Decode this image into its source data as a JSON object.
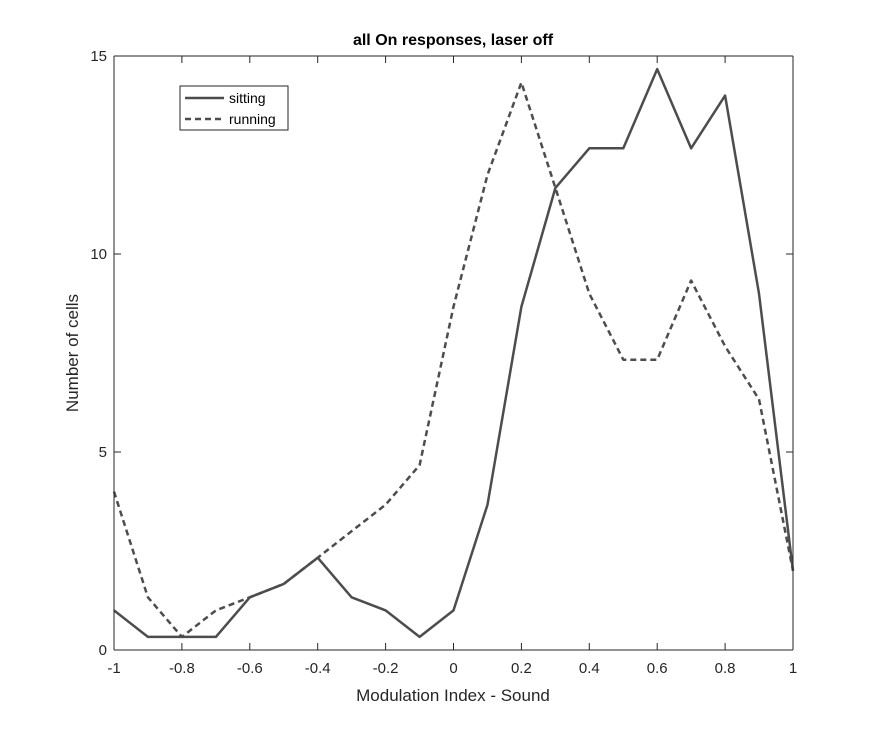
{
  "chart_data": {
    "type": "line",
    "title": "all On responses, laser off",
    "xlabel": "Modulation Index - Sound",
    "ylabel": "Number of cells",
    "xlim": [
      -1,
      1
    ],
    "ylim": [
      0,
      15
    ],
    "xticks": [
      -1,
      -0.8,
      -0.6,
      -0.4,
      -0.2,
      0,
      0.2,
      0.4,
      0.6,
      0.8,
      1
    ],
    "xtick_labels": [
      "-1",
      "-0.8",
      "-0.6",
      "-0.4",
      "-0.2",
      "0",
      "0.2",
      "0.4",
      "0.6",
      "0.8",
      "1"
    ],
    "yticks": [
      0,
      5,
      10,
      15
    ],
    "ytick_labels": [
      "0",
      "5",
      "10",
      "15"
    ],
    "grid": false,
    "legend_position": "top-left",
    "x": [
      -1,
      -0.9,
      -0.8,
      -0.7,
      -0.6,
      -0.5,
      -0.4,
      -0.3,
      -0.2,
      -0.1,
      0,
      0.1,
      0.2,
      0.3,
      0.4,
      0.5,
      0.6,
      0.7,
      0.8,
      0.9,
      1
    ],
    "series": [
      {
        "name": "sitting",
        "style": "solid",
        "color": "#4d4d4d",
        "values": [
          1,
          0.33,
          0.33,
          0.33,
          1.33,
          1.67,
          2.33,
          1.33,
          1,
          0.33,
          1,
          3.67,
          8.67,
          11.67,
          12.67,
          12.67,
          14.67,
          12.67,
          14,
          9,
          2
        ]
      },
      {
        "name": "running",
        "style": "dashed",
        "color": "#4d4d4d",
        "values": [
          4,
          1.33,
          0.33,
          1,
          1.33,
          1.67,
          2.33,
          3,
          3.67,
          4.67,
          8.67,
          12,
          14.33,
          11.67,
          9,
          7.33,
          7.33,
          9.33,
          7.67,
          6.33,
          2
        ]
      }
    ]
  }
}
